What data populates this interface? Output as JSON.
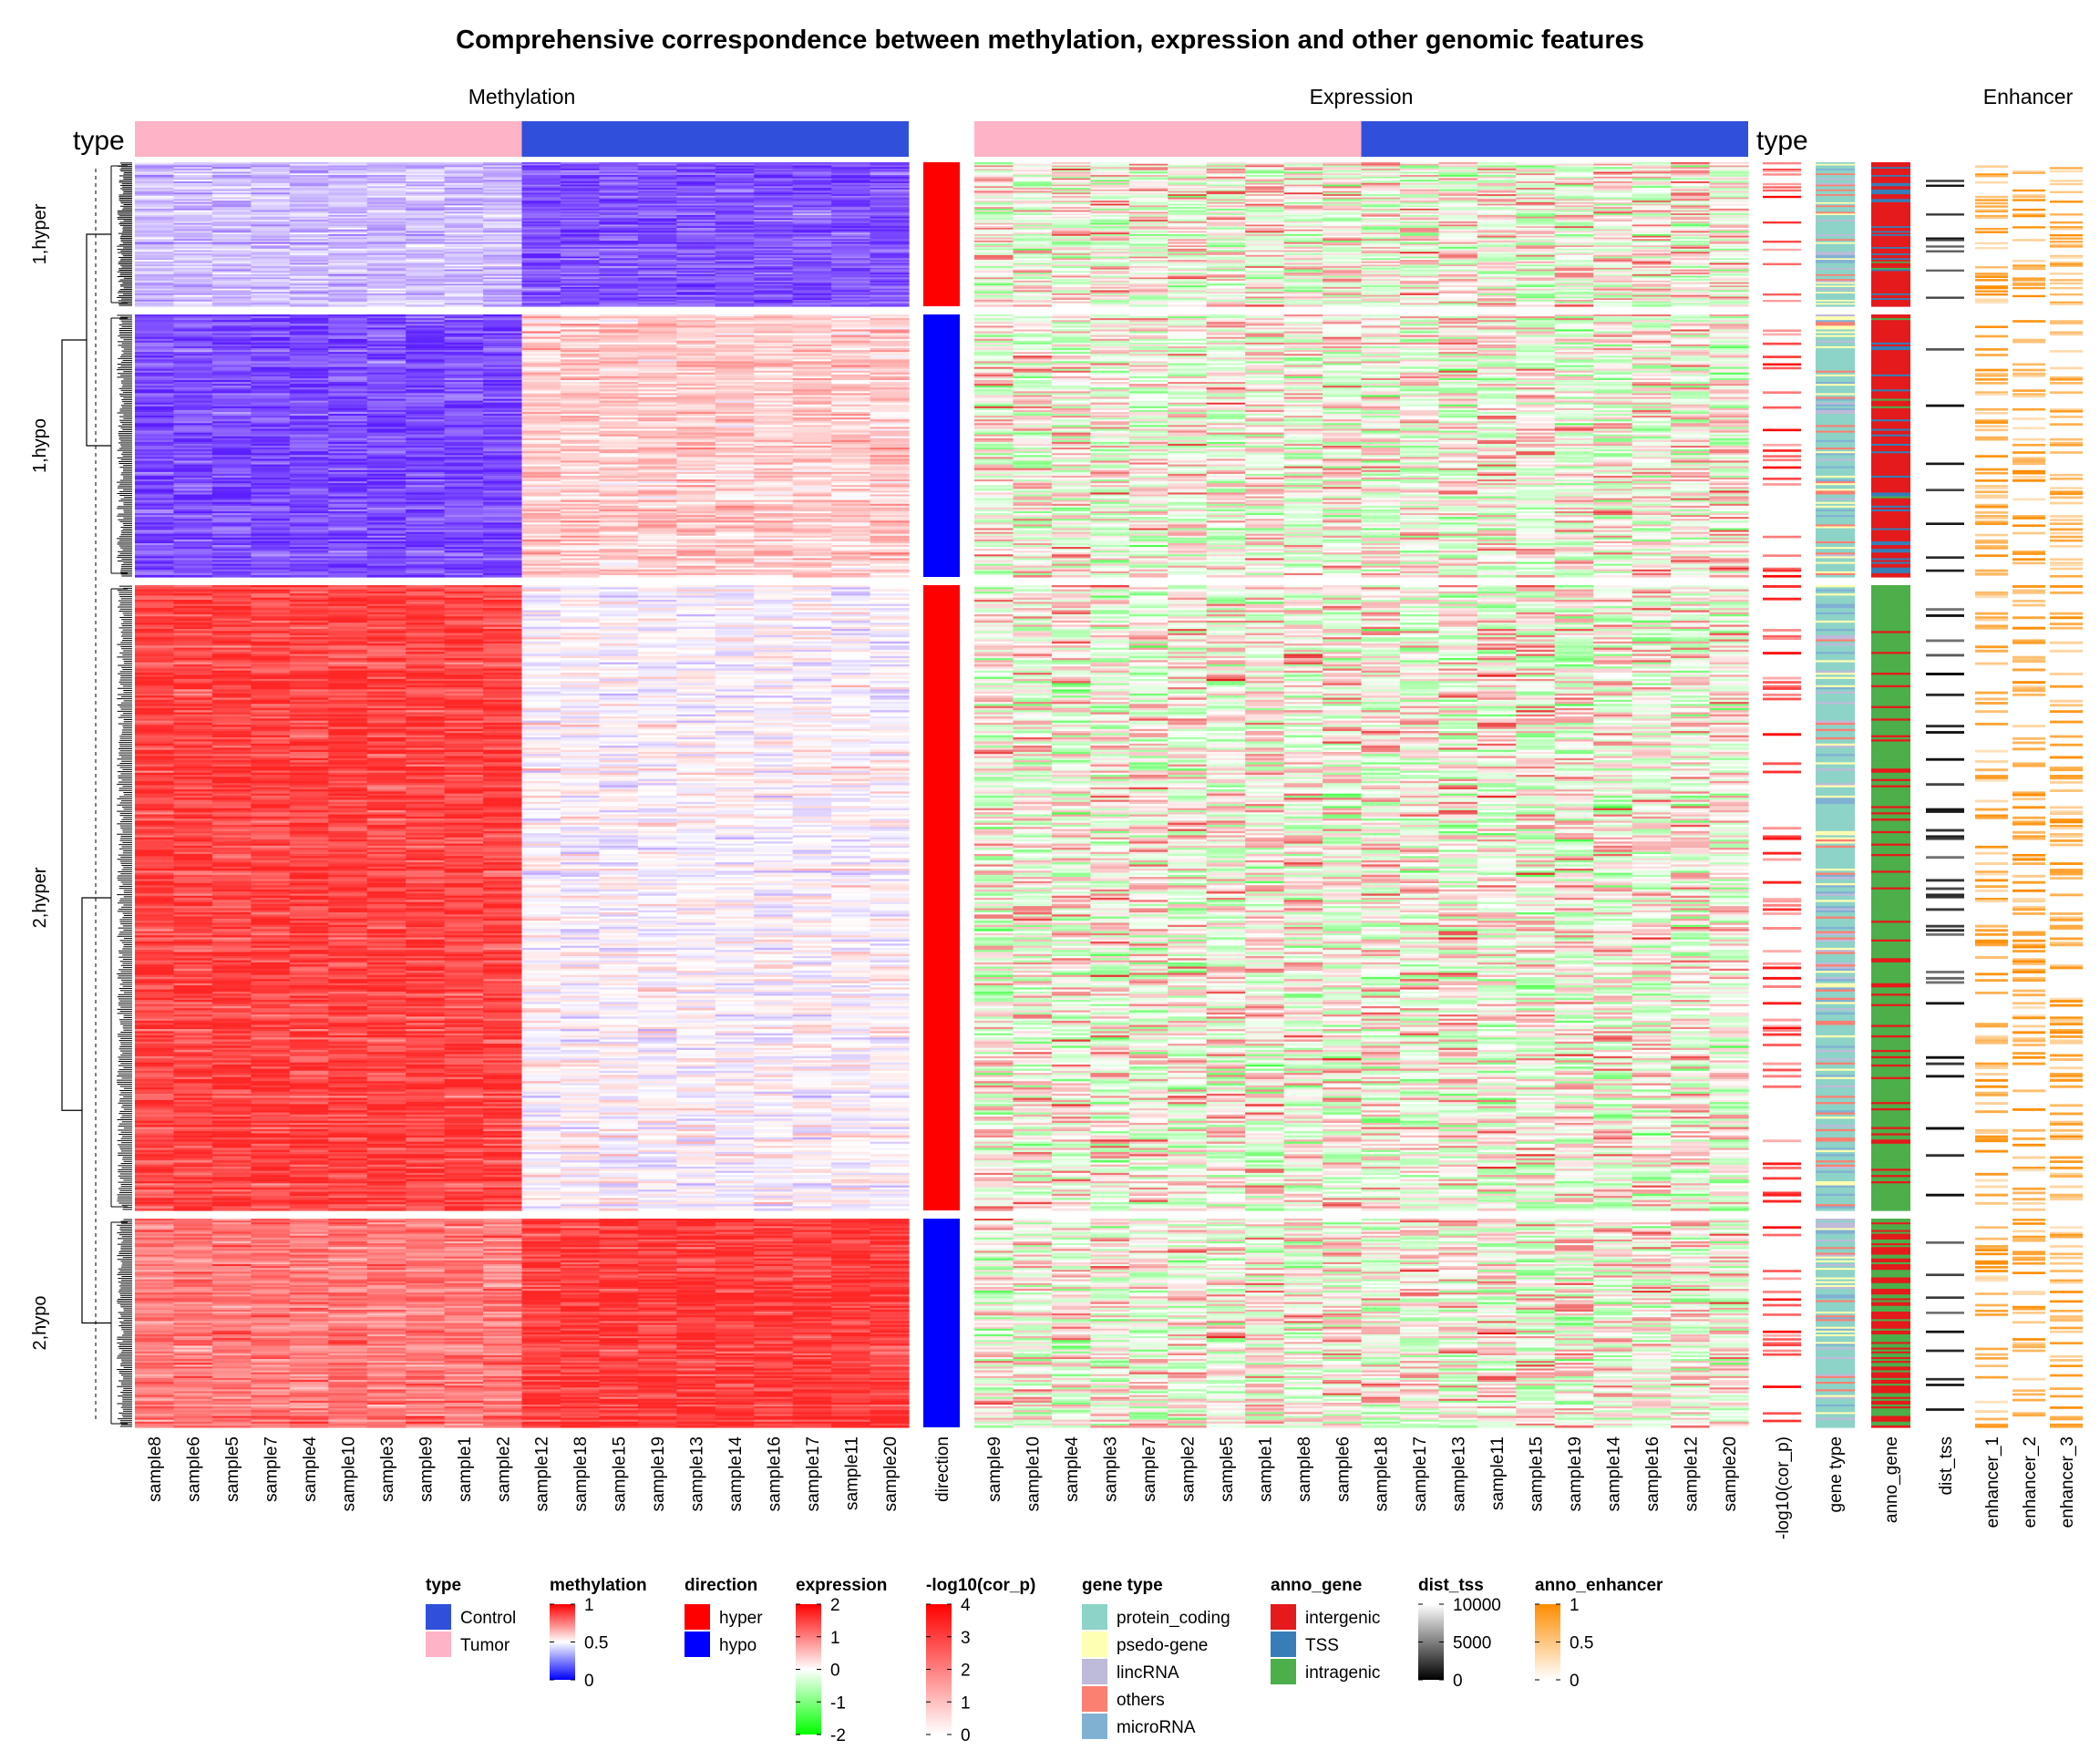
{
  "chart_data": {
    "type": "heatmap",
    "title": "Comprehensive correspondence between methylation, expression and other genomic features",
    "column_titles": {
      "methylation": "Methylation",
      "expression": "Expression",
      "enhancer": "Enhancer"
    },
    "type_annotation_label": "type",
    "row_slices": [
      {
        "label": "1,hyper",
        "direction": "hyper",
        "rows": 90
      },
      {
        "label": "1,hypo",
        "direction": "hypo",
        "rows": 140
      },
      {
        "label": "2,hyper",
        "direction": "hyper",
        "rows": 300
      },
      {
        "label": "2,hypo",
        "direction": "hypo",
        "rows": 110
      }
    ],
    "methylation_samples": {
      "tumor": [
        "sample8",
        "sample6",
        "sample5",
        "sample7",
        "sample4",
        "sample10",
        "sample3",
        "sample9",
        "sample1",
        "sample2"
      ],
      "control": [
        "sample12",
        "sample18",
        "sample15",
        "sample19",
        "sample13",
        "sample14",
        "sample16",
        "sample17",
        "sample11",
        "sample20"
      ]
    },
    "expression_samples": {
      "tumor": [
        "sample9",
        "sample10",
        "sample4",
        "sample3",
        "sample7",
        "sample2",
        "sample5",
        "sample1",
        "sample8",
        "sample6"
      ],
      "control": [
        "sample18",
        "sample17",
        "sample13",
        "sample11",
        "sample15",
        "sample19",
        "sample14",
        "sample16",
        "sample12",
        "sample20"
      ]
    },
    "slice_mean_methylation": [
      {
        "tumor": 0.35,
        "control": 0.12
      },
      {
        "tumor": 0.1,
        "control": 0.62
      },
      {
        "tumor": 0.94,
        "control": 0.5
      },
      {
        "tumor": 0.8,
        "control": 0.95
      }
    ],
    "annotation_columns": [
      "direction",
      "-log10(cor_p)",
      "gene type",
      "anno_gene",
      "dist_tss",
      "enhancer_1",
      "enhancer_2",
      "enhancer_3"
    ],
    "slice_anno_gene_mix": [
      {
        "intergenic": 0.78,
        "TSS": 0.2,
        "intragenic": 0.02
      },
      {
        "intergenic": 0.72,
        "TSS": 0.26,
        "intragenic": 0.02
      },
      {
        "intergenic": 0.15,
        "TSS": 0.0,
        "intragenic": 0.85
      },
      {
        "intergenic": 0.45,
        "TSS": 0.0,
        "intragenic": 0.55
      }
    ],
    "legends": {
      "type": {
        "title": "type",
        "items": [
          {
            "label": "Control",
            "color": "#3050dc"
          },
          {
            "label": "Tumor",
            "color": "#ffb3c6"
          }
        ]
      },
      "methylation": {
        "title": "methylation",
        "ticks": [
          "1",
          "0.5",
          "0"
        ],
        "colors": [
          "#ff0000",
          "#ffffff",
          "#0000ff"
        ]
      },
      "direction": {
        "title": "direction",
        "items": [
          {
            "label": "hyper",
            "color": "#ff0000"
          },
          {
            "label": "hypo",
            "color": "#0000ff"
          }
        ]
      },
      "expression": {
        "title": "expression",
        "ticks": [
          "2",
          "1",
          "0",
          "-1",
          "-2"
        ],
        "colors": [
          "#ff0000",
          "#ffffff",
          "#00ff00"
        ]
      },
      "cor_p": {
        "title": "-log10(cor_p)",
        "ticks": [
          "4",
          "3",
          "2",
          "1",
          "0"
        ],
        "colors": [
          "#ff0000",
          "#ffffff"
        ]
      },
      "gene_type": {
        "title": "gene type",
        "items": [
          {
            "label": "protein_coding",
            "color": "#8dd3c7"
          },
          {
            "label": "psedo-gene",
            "color": "#ffffb3"
          },
          {
            "label": "lincRNA",
            "color": "#bebada"
          },
          {
            "label": "others",
            "color": "#fb8072"
          },
          {
            "label": "microRNA",
            "color": "#80b1d3"
          }
        ]
      },
      "anno_gene": {
        "title": "anno_gene",
        "items": [
          {
            "label": "intergenic",
            "color": "#e41a1c"
          },
          {
            "label": "TSS",
            "color": "#377eb8"
          },
          {
            "label": "intragenic",
            "color": "#4daf4a"
          }
        ]
      },
      "dist_tss": {
        "title": "dist_tss",
        "ticks": [
          "10000",
          "5000",
          "0"
        ],
        "colors": [
          "#ffffff",
          "#000000"
        ]
      },
      "anno_enhancer": {
        "title": "anno_enhancer",
        "ticks": [
          "1",
          "0.5",
          "0"
        ],
        "colors": [
          "#ff8c00",
          "#ffffff"
        ]
      }
    }
  }
}
